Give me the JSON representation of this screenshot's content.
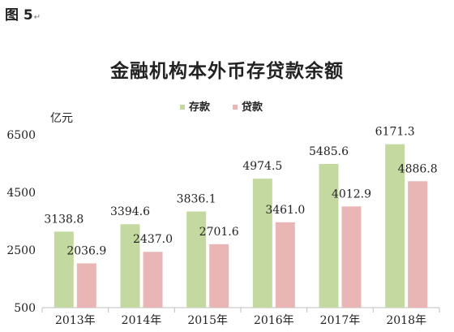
{
  "figure_label": "图 5",
  "chart_data": {
    "type": "bar",
    "title": "金融机构本外币存贷款余额",
    "ylabel": "亿元",
    "xlabel": "",
    "categories": [
      "2013年",
      "2014年",
      "2015年",
      "2016年",
      "2017年",
      "2018年"
    ],
    "series": [
      {
        "name": "存款",
        "color": "#c4d9a0",
        "values": [
          3138.8,
          3394.6,
          3836.1,
          4974.5,
          5485.6,
          6171.3
        ],
        "labels": [
          "3138.8",
          "3394.6",
          "3836.1",
          "4974.5",
          "5485.6",
          "6171.3"
        ]
      },
      {
        "name": "贷款",
        "color": "#e9b6b5",
        "values": [
          2036.9,
          2437.0,
          2701.6,
          3461.0,
          4012.9,
          4886.8
        ],
        "labels": [
          "2036.9",
          "2437.0",
          "2701.6",
          "3461.0",
          "4012.9",
          "4886.8"
        ]
      }
    ],
    "ylim": [
      500,
      6500
    ],
    "yticks": [
      500,
      2500,
      4500,
      6500
    ],
    "legend_position": "top-center",
    "grid": false
  }
}
